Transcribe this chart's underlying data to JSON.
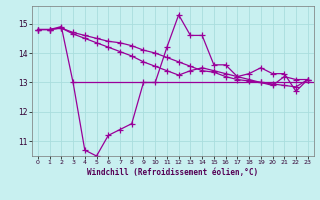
{
  "title": "",
  "xlabel": "Windchill (Refroidissement éolien,°C)",
  "ylabel": "",
  "background_color": "#c8f0f0",
  "grid_color": "#aadddd",
  "line_color": "#990099",
  "xlim": [
    -0.5,
    23.5
  ],
  "ylim": [
    10.5,
    15.6
  ],
  "yticks": [
    11,
    12,
    13,
    14,
    15
  ],
  "xticks": [
    0,
    1,
    2,
    3,
    4,
    5,
    6,
    7,
    8,
    9,
    10,
    11,
    12,
    13,
    14,
    15,
    16,
    17,
    18,
    19,
    20,
    21,
    22,
    23
  ],
  "curve1_x": [
    0,
    1,
    2,
    3,
    4,
    5,
    6,
    7,
    8,
    9,
    10,
    11,
    12,
    13,
    14,
    15,
    16,
    17,
    18,
    19,
    20,
    21,
    22,
    23
  ],
  "curve1_y": [
    14.8,
    14.8,
    14.9,
    13.0,
    10.7,
    10.5,
    11.2,
    11.4,
    11.6,
    13.0,
    13.0,
    14.2,
    15.3,
    14.6,
    14.6,
    13.6,
    13.6,
    13.2,
    13.3,
    13.5,
    13.3,
    13.3,
    12.7,
    13.1
  ],
  "curve2_x": [
    0,
    1,
    2,
    3,
    4,
    5,
    6,
    7,
    8,
    9,
    10,
    11,
    12,
    13,
    14,
    15,
    16,
    17,
    18,
    19,
    20,
    21,
    22,
    23
  ],
  "curve2_y": [
    14.8,
    14.8,
    14.85,
    14.7,
    14.6,
    14.5,
    14.4,
    14.35,
    14.25,
    14.1,
    14.0,
    13.85,
    13.7,
    13.55,
    13.4,
    13.35,
    13.2,
    13.1,
    13.05,
    13.0,
    12.95,
    12.9,
    12.85,
    13.1
  ],
  "curve3_x": [
    0,
    1,
    2,
    3,
    4,
    5,
    6,
    7,
    8,
    9,
    10,
    11,
    12,
    13,
    14,
    15,
    16,
    17,
    18,
    19,
    20,
    21,
    22,
    23
  ],
  "curve3_y": [
    14.8,
    14.8,
    14.85,
    14.65,
    14.5,
    14.35,
    14.2,
    14.05,
    13.9,
    13.7,
    13.55,
    13.4,
    13.25,
    13.4,
    13.5,
    13.4,
    13.3,
    13.2,
    13.1,
    13.0,
    12.9,
    13.2,
    13.1,
    13.1
  ],
  "hline_y": 13.0,
  "hline_x_start": 3.0,
  "hline_x_end": 23.5,
  "marker": "+",
  "markersize": 4,
  "linewidth": 0.9
}
